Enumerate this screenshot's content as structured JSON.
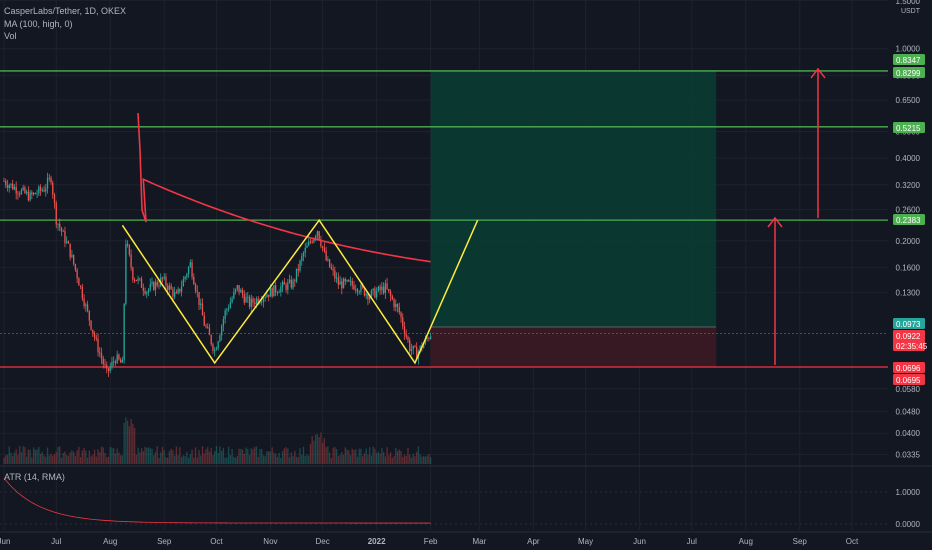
{
  "legend": {
    "symbol": "CasperLabs/Tether, 1D, OKEX",
    "ma": "MA (100, high, 0)",
    "vol": "Vol"
  },
  "atr_label": "ATR (14, RMA)",
  "colors": {
    "background": "#131722",
    "up": "#26a69a",
    "down": "#ef5350",
    "ma": "#f23645",
    "pattern": "#ffeb3b",
    "level_green": "#4caf50",
    "level_red": "#f23645",
    "target_zone": "#0b3b33",
    "stop_zone": "#3b1a22"
  },
  "chart_data": {
    "type": "candlestick",
    "symbol": "CasperLabs/Tether",
    "interval": "1D",
    "exchange": "OKEX",
    "price_axis_unit": "USDT",
    "y_scale": "log",
    "price_ticks": [
      "1.5000",
      "1.0000",
      "0.8000",
      "0.6500",
      "0.5000",
      "0.4000",
      "0.3200",
      "0.2600",
      "0.2000",
      "0.1600",
      "0.1300",
      "0.0580",
      "0.0480",
      "0.0400",
      "0.0335"
    ],
    "time_ticks": [
      "Jun",
      "Jul",
      "Aug",
      "Sep",
      "Oct",
      "Nov",
      "Dec",
      "2022",
      "Feb",
      "Mar",
      "Apr",
      "May",
      "Jun",
      "Jul",
      "Aug",
      "Sep",
      "Oct"
    ],
    "price_labels": [
      {
        "value": "0.8347",
        "kind": "green"
      },
      {
        "value": "0.8299",
        "kind": "green"
      },
      {
        "value": "0.5215",
        "kind": "green"
      },
      {
        "value": "0.2383",
        "kind": "green"
      },
      {
        "value": "0.0973",
        "kind": "teal"
      },
      {
        "value": "0.0922",
        "kind": "red"
      },
      {
        "value": "02:35:45",
        "kind": "red"
      },
      {
        "value": "0.0696",
        "kind": "red"
      },
      {
        "value": "0.0695",
        "kind": "red"
      }
    ],
    "horizontal_levels": [
      0.83,
      0.52,
      0.238,
      0.0696
    ],
    "pattern_points": [
      {
        "date": "2021-08-08",
        "price": 0.228
      },
      {
        "date": "2021-09-30",
        "price": 0.072
      },
      {
        "date": "2021-11-29",
        "price": 0.238
      },
      {
        "date": "2022-01-23",
        "price": 0.072
      },
      {
        "date": "2022-02-28",
        "price": 0.238
      }
    ],
    "position": {
      "entry": 0.0973,
      "stop": 0.0696,
      "target": 0.83,
      "start": "2022-02-01",
      "end": "2022-07-15"
    },
    "atr_ticks": [
      "1.0000",
      "0.0000"
    ]
  }
}
